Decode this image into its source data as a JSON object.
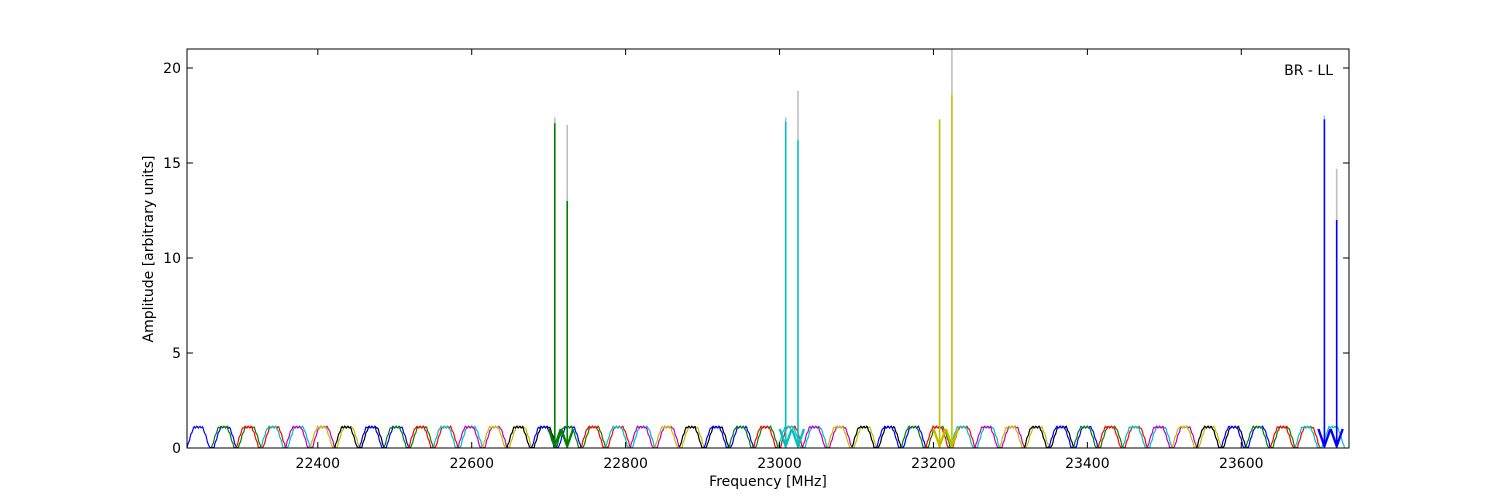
{
  "chart_data": {
    "type": "line",
    "title": "",
    "annotation": "BR - LL",
    "xlabel": "Frequency [MHz]",
    "ylabel": "Amplitude [arbitrary units]",
    "xlim": [
      22230,
      23740
    ],
    "ylim": [
      0,
      21
    ],
    "xticks": [
      22400,
      22600,
      22800,
      23000,
      23200,
      23400,
      23600
    ],
    "yticks": [
      0,
      5,
      10,
      15,
      20
    ],
    "grid": false,
    "legend": "none",
    "band_width_mhz": 64,
    "band_centers_mhz": [
      22262,
      22294,
      22326,
      22358,
      22390,
      22422,
      22454,
      22486,
      22518,
      22550,
      22582,
      22614,
      22646,
      22678,
      22710,
      22742,
      22774,
      22806,
      22838,
      22870,
      22902,
      22934,
      22966,
      22998,
      23030,
      23062,
      23094,
      23126,
      23158,
      23190,
      23222,
      23254,
      23286,
      23318,
      23350,
      23382,
      23414,
      23446,
      23478,
      23510,
      23542,
      23574,
      23606,
      23638,
      23670,
      23702
    ],
    "baseline_level": 1.1,
    "band_colors": [
      "#0000ff",
      "#008000",
      "#ff0000",
      "#00bfbf",
      "#bf00bf",
      "#bfbf00",
      "#000000"
    ],
    "spikes": [
      {
        "x": 22708,
        "y": 17.1,
        "y_upper": 17.4,
        "color": "#008000"
      },
      {
        "x": 22724,
        "y": 13.0,
        "y_upper": 17.0,
        "color": "#008000"
      },
      {
        "x": 23008,
        "y": 17.2,
        "y_upper": 17.4,
        "color": "#00bfbf"
      },
      {
        "x": 23024,
        "y": 16.2,
        "y_upper": 18.8,
        "color": "#00bfbf"
      },
      {
        "x": 23208,
        "y": 17.3,
        "y_upper": 17.3,
        "color": "#bfbf00"
      },
      {
        "x": 23224,
        "y": 18.6,
        "y_upper": 21.0,
        "color": "#bfbf00"
      },
      {
        "x": 23708,
        "y": 17.3,
        "y_upper": 17.5,
        "color": "#0000ff"
      },
      {
        "x": 23724,
        "y": 12.0,
        "y_upper": 14.7,
        "color": "#0000ff"
      }
    ],
    "upper_envelope_color": "#bfbfbf"
  }
}
